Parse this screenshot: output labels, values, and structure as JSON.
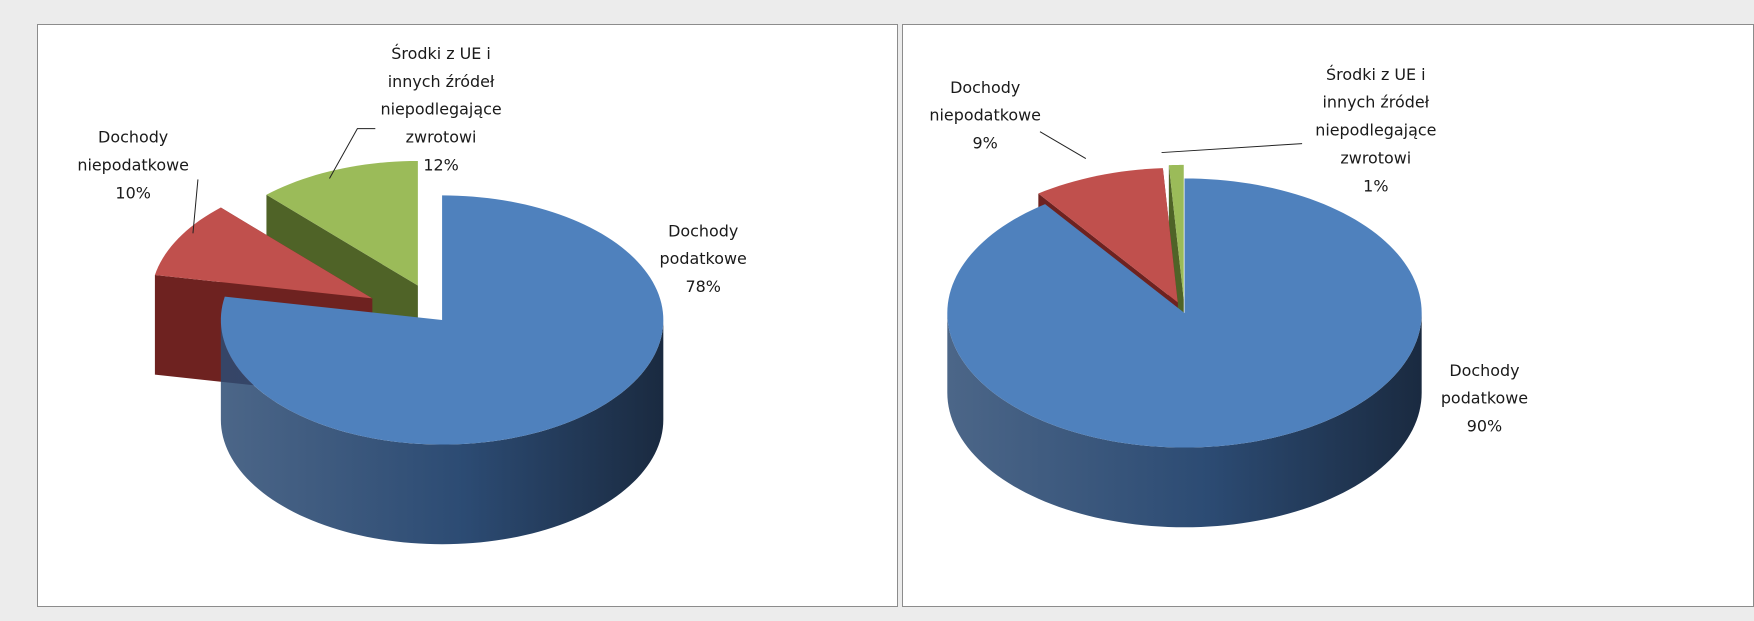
{
  "chart_data": [
    {
      "type": "pie",
      "categories": [
        "Dochody podatkowe",
        "Dochody niepodatkowe",
        "Środki z UE i innych źródeł niepodlegające zwrotowi"
      ],
      "values": [
        78,
        10,
        12
      ],
      "value_labels": [
        "78%",
        "10%",
        "12%"
      ],
      "colors": [
        "#4f81bd",
        "#c0504d",
        "#9bbb59"
      ],
      "labels": {
        "podatkowe": [
          "Dochody",
          "podatkowe",
          "78%"
        ],
        "niepodatkowe": [
          "Dochody",
          "niepodatkowe",
          "10%"
        ],
        "ue": [
          "Środki z UE i",
          "innych źródeł",
          "niepodlegające",
          "zwrotowi",
          "12%"
        ]
      },
      "style": "3d-exploded-pie"
    },
    {
      "type": "pie",
      "categories": [
        "Dochody podatkowe",
        "Dochody niepodatkowe",
        "Środki z UE i innych źródeł niepodlegające zwrotowi"
      ],
      "values": [
        90,
        9,
        1
      ],
      "value_labels": [
        "90%",
        "9%",
        "1%"
      ],
      "colors": [
        "#4f81bd",
        "#c0504d",
        "#9bbb59"
      ],
      "labels": {
        "podatkowe": [
          "Dochody",
          "podatkowe",
          "90%"
        ],
        "niepodatkowe": [
          "Dochody",
          "niepodatkowe",
          "9%"
        ],
        "ue": [
          "Środki z UE i",
          "innych źródeł",
          "niepodlegające",
          "zwrotowi",
          "1%"
        ]
      },
      "style": "3d-exploded-pie"
    }
  ]
}
